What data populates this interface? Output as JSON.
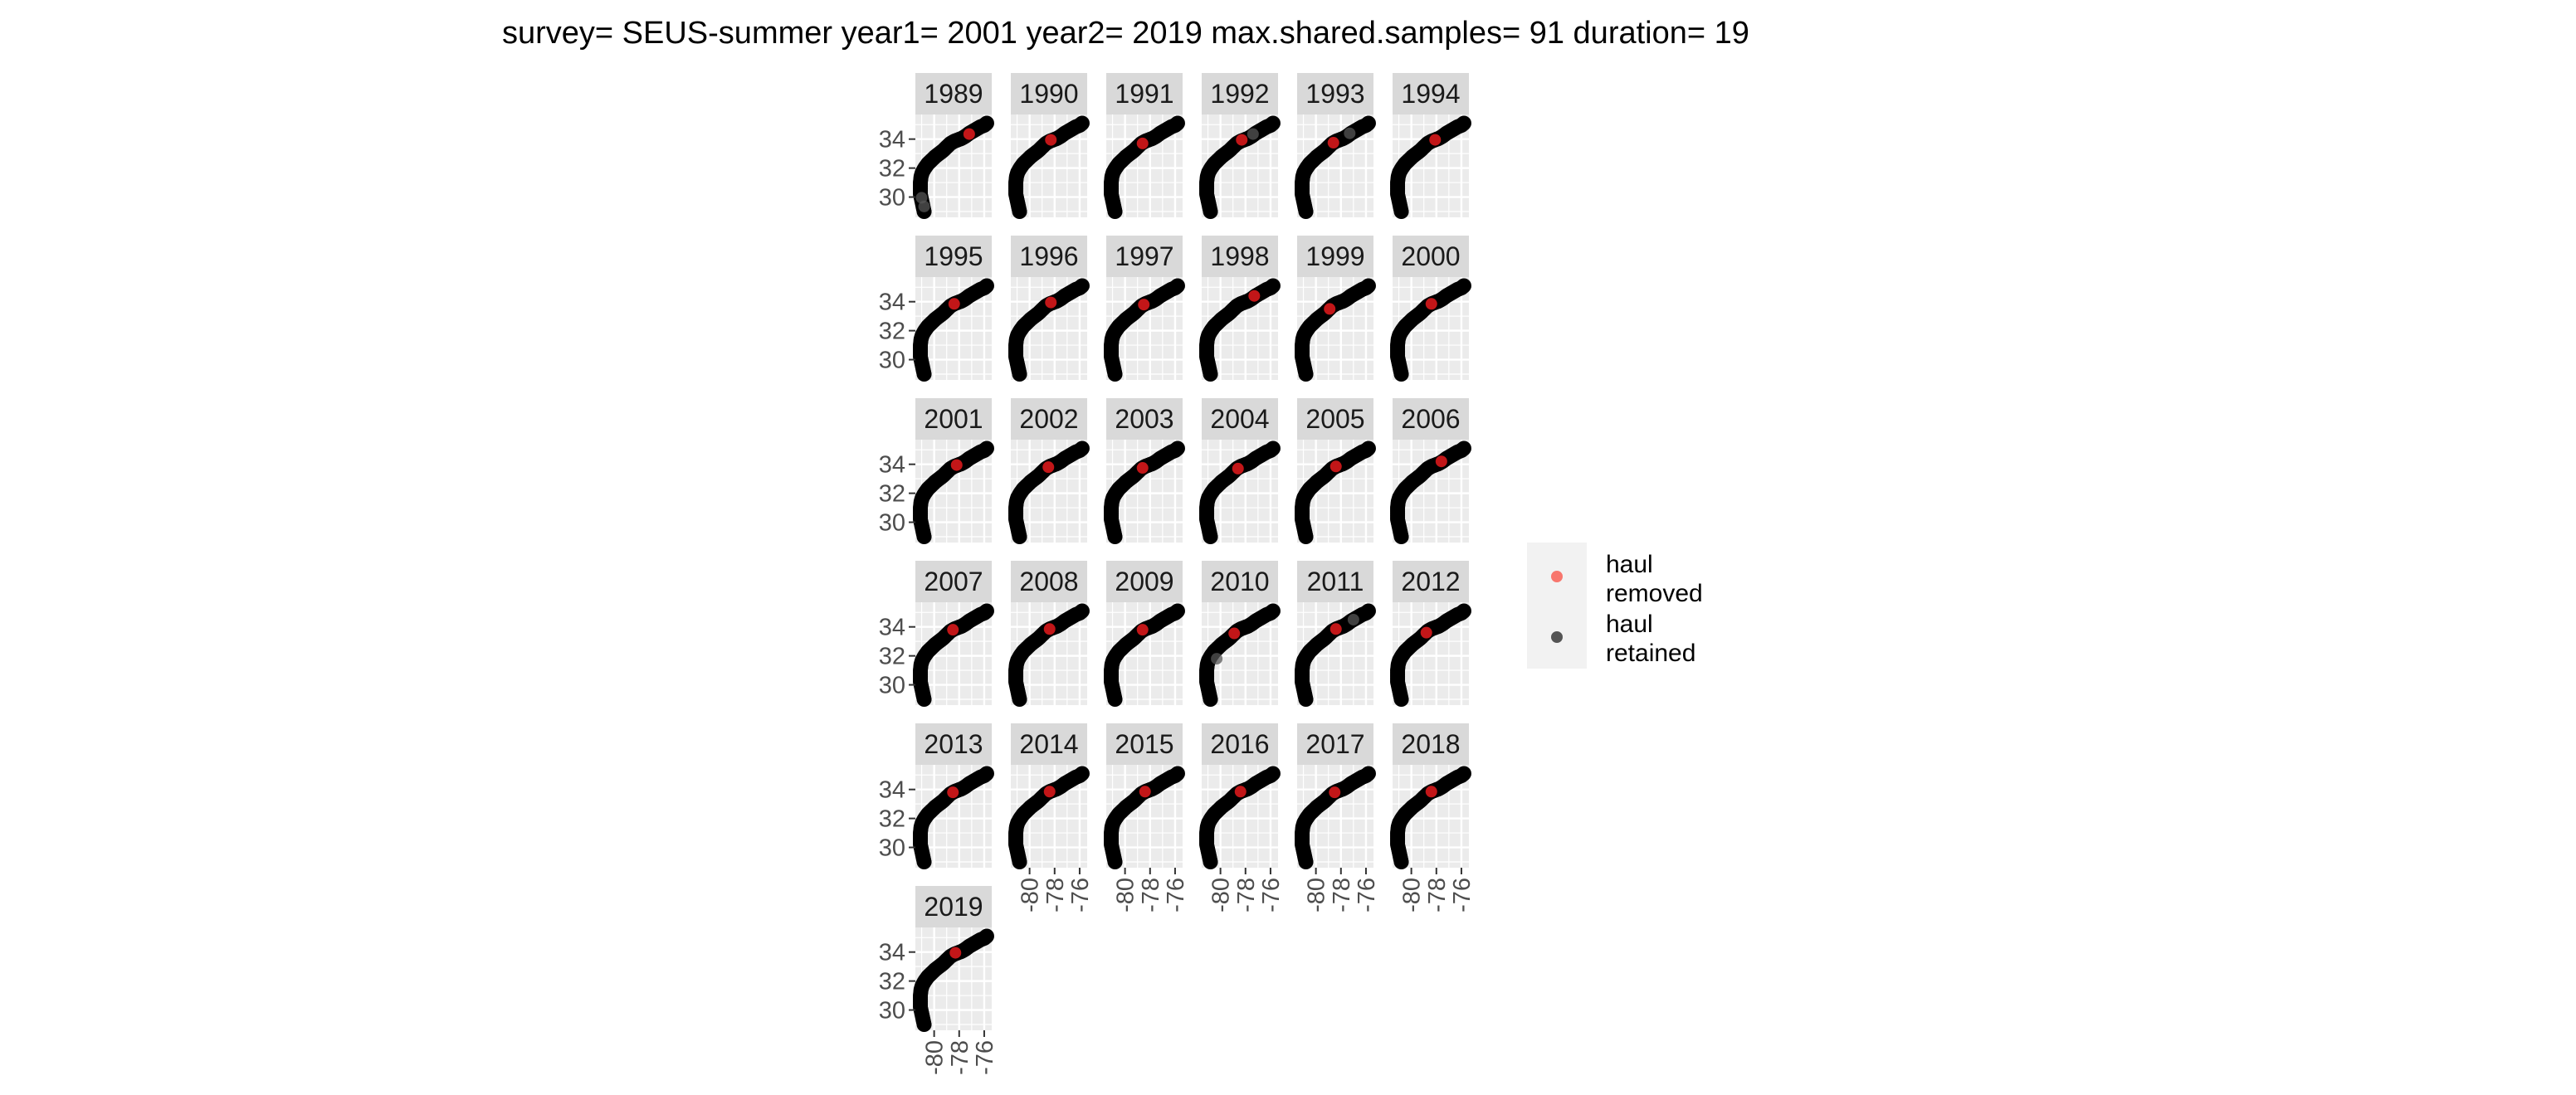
{
  "chart_data": {
    "type": "scatter",
    "title": "survey= SEUS-summer year1= 2001 year2= 2019 max.shared.samples= 91 duration= 19",
    "facet_years": [
      "1989",
      "1990",
      "1991",
      "1992",
      "1993",
      "1994",
      "1995",
      "1996",
      "1997",
      "1998",
      "1999",
      "2000",
      "2001",
      "2002",
      "2003",
      "2004",
      "2005",
      "2006",
      "2007",
      "2008",
      "2009",
      "2010",
      "2011",
      "2012",
      "2013",
      "2014",
      "2015",
      "2016",
      "2017",
      "2018",
      "2019"
    ],
    "xlim": [
      -81.5,
      -75.4
    ],
    "ylim": [
      28.6,
      35.7
    ],
    "x_ticks": [
      -80,
      -78,
      -76
    ],
    "x_tick_labels": [
      "-80",
      "-78",
      "-76"
    ],
    "y_ticks": [
      30,
      32,
      34
    ],
    "y_tick_labels": [
      "30",
      "32",
      "34"
    ],
    "xlabel": "",
    "ylabel": "",
    "grid": true,
    "legend_position": "right",
    "legend_items": [
      {
        "label_line1": "haul",
        "label_line2": "removed",
        "color": "#f8766d"
      },
      {
        "label_line1": "haul",
        "label_line2": "retained",
        "color": "#555555"
      }
    ],
    "retained_track": {
      "lon": [
        -80.8,
        -80.9,
        -81.0,
        -81.1,
        -81.1,
        -81.1,
        -81.05,
        -80.95,
        -80.75,
        -80.5,
        -80.2,
        -79.9,
        -79.6,
        -79.3,
        -79.0,
        -78.7,
        -78.4,
        -78.1,
        -77.8,
        -77.5,
        -77.2,
        -76.9,
        -76.6,
        -76.3,
        -76.0,
        -75.8
      ],
      "lat": [
        29.0,
        29.4,
        29.8,
        30.2,
        30.6,
        31.0,
        31.4,
        31.7,
        32.0,
        32.3,
        32.55,
        32.8,
        33.0,
        33.2,
        33.45,
        33.7,
        33.85,
        33.95,
        34.05,
        34.2,
        34.4,
        34.55,
        34.7,
        34.85,
        34.95,
        35.1
      ]
    },
    "removed_hauls": {
      "1989": [
        [
          -77.2,
          34.35
        ]
      ],
      "1990": [
        [
          -78.3,
          33.95
        ]
      ],
      "1991": [
        [
          -78.6,
          33.7
        ]
      ],
      "1992": [
        [
          -78.3,
          33.95
        ]
      ],
      "1993": [
        [
          -78.6,
          33.75
        ]
      ],
      "1994": [
        [
          -78.1,
          33.95
        ]
      ],
      "1995": [
        [
          -78.4,
          33.85
        ]
      ],
      "1996": [
        [
          -78.3,
          33.95
        ]
      ],
      "1997": [
        [
          -78.5,
          33.8
        ]
      ],
      "1998": [
        [
          -77.3,
          34.4
        ]
      ],
      "1999": [
        [
          -78.9,
          33.5
        ]
      ],
      "2000": [
        [
          -78.4,
          33.85
        ]
      ],
      "2001": [
        [
          -78.2,
          33.95
        ]
      ],
      "2002": [
        [
          -78.5,
          33.8
        ]
      ],
      "2003": [
        [
          -78.6,
          33.75
        ]
      ],
      "2004": [
        [
          -78.6,
          33.7
        ]
      ],
      "2005": [
        [
          -78.4,
          33.85
        ]
      ],
      "2006": [
        [
          -77.6,
          34.2
        ]
      ],
      "2007": [
        [
          -78.5,
          33.8
        ]
      ],
      "2008": [
        [
          -78.4,
          33.85
        ]
      ],
      "2009": [
        [
          -78.6,
          33.8
        ]
      ],
      "2010": [
        [
          -78.9,
          33.55
        ]
      ],
      "2011": [
        [
          -78.4,
          33.85
        ]
      ],
      "2012": [
        [
          -78.8,
          33.6
        ]
      ],
      "2013": [
        [
          -78.5,
          33.8
        ]
      ],
      "2014": [
        [
          -78.4,
          33.85
        ]
      ],
      "2015": [
        [
          -78.4,
          33.85
        ]
      ],
      "2016": [
        [
          -78.4,
          33.85
        ]
      ],
      "2017": [
        [
          -78.5,
          33.8
        ]
      ],
      "2018": [
        [
          -78.4,
          33.85
        ]
      ],
      "2019": [
        [
          -78.3,
          33.95
        ]
      ]
    },
    "extra_retained_hauls": {
      "1989": [
        [
          -81.0,
          29.95
        ],
        [
          -80.8,
          29.35
        ]
      ],
      "1992": [
        [
          -77.4,
          34.35
        ]
      ],
      "1993": [
        [
          -77.3,
          34.4
        ]
      ],
      "2010": [
        [
          -80.3,
          31.8
        ]
      ],
      "2011": [
        [
          -77.0,
          34.5
        ]
      ]
    }
  }
}
